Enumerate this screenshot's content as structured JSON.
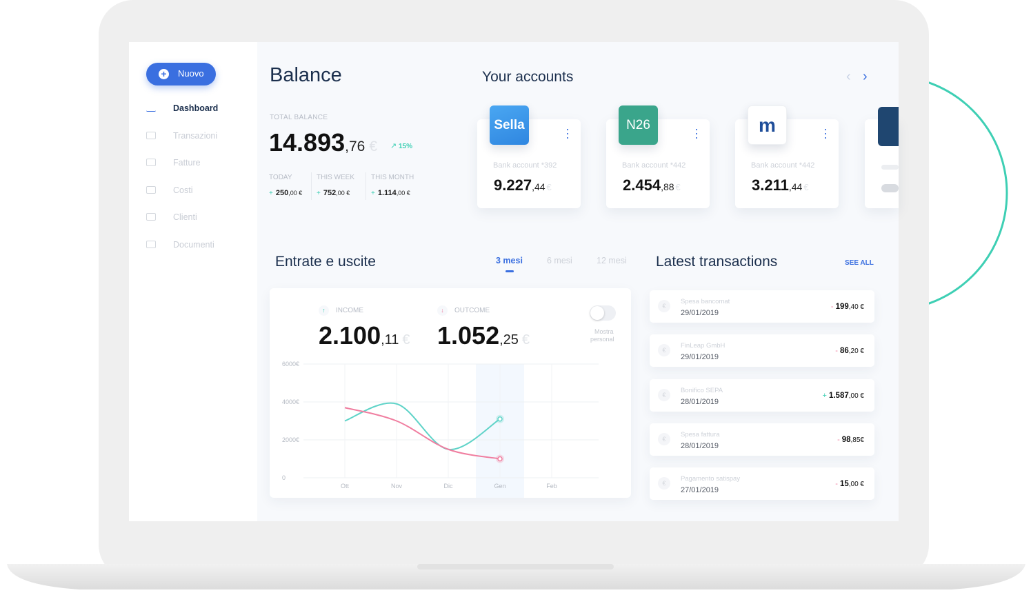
{
  "sidebar": {
    "new_button": "Nuovo",
    "menu": [
      "Dashboard",
      "Transazioni",
      "Fatture",
      "Costi",
      "Clienti",
      "Documenti"
    ]
  },
  "balance": {
    "title": "Balance",
    "total_label": "TOTAL BALANCE",
    "total": {
      "integer": "14.893",
      "decimal": ",76",
      "currency": "€"
    },
    "change": "15%",
    "periods": [
      {
        "label": "TODAY",
        "sign": "+",
        "amount": "250",
        "decimal": ",00 €"
      },
      {
        "label": "THIS WEEK",
        "sign": "+",
        "amount": "752",
        "decimal": ",00 €"
      },
      {
        "label": "THIS MONTH",
        "sign": "+",
        "amount": "1.114",
        "decimal": ",00 €"
      }
    ]
  },
  "accounts": {
    "title": "Your accounts",
    "cards": [
      {
        "logo": "Sella",
        "name": "Bank account *392",
        "integer": "9.227",
        "decimal": ",44",
        "currency": "€"
      },
      {
        "logo": "N26",
        "name": "Bank account *442",
        "integer": "2.454",
        "decimal": ",88",
        "currency": "€"
      },
      {
        "logo": "m",
        "name": "Bank account *442",
        "integer": "3.211",
        "decimal": ",44",
        "currency": "€"
      }
    ]
  },
  "flows": {
    "title": "Entrate e uscite",
    "tabs": [
      "3 mesi",
      "6 mesi",
      "12 mesi"
    ],
    "income": {
      "label": "INCOME",
      "integer": "2.100",
      "decimal": ",11",
      "currency": "€"
    },
    "outcome": {
      "label": "OUTCOME",
      "integer": "1.052",
      "decimal": ",25",
      "currency": "€"
    },
    "toggle_label": [
      "Mostra",
      "personal"
    ]
  },
  "chart": {
    "type": "line",
    "categories": [
      "Ott",
      "Nov",
      "Dic",
      "Gen",
      "Feb"
    ],
    "series": [
      {
        "color": "#5fd3c8",
        "values": [
          3000,
          3900,
          1500,
          3100,
          null
        ]
      },
      {
        "color": "#f07ea0",
        "values": [
          3700,
          3000,
          1500,
          1000,
          null
        ]
      }
    ],
    "ylim": [
      0,
      6000
    ],
    "yticks": [
      0,
      {
        "value": 2000,
        "label": "2000€"
      },
      {
        "value": 4000,
        "label": "4000€"
      },
      {
        "value": 6000,
        "label": "6000€"
      }
    ],
    "grid": true
  },
  "transactions": {
    "title": "Latest transactions",
    "see_all": "SEE ALL",
    "items": [
      {
        "name": "Spesa bancomat",
        "date": "29/01/2019",
        "sign": "-",
        "amount": "199",
        "decimal": ",40 €"
      },
      {
        "name": "FinLeap GmbH",
        "date": "29/01/2019",
        "sign": "-",
        "amount": "86",
        "decimal": ",20 €"
      },
      {
        "name": "Bonifico SEPA",
        "date": "28/01/2019",
        "sign": "+",
        "amount": "1.587",
        "decimal": ",00 €"
      },
      {
        "name": "Spesa fattura",
        "date": "28/01/2019",
        "sign": "-",
        "amount": "98",
        "decimal": ",85€"
      },
      {
        "name": "Pagamento satispay",
        "date": "27/01/2019",
        "sign": "-",
        "amount": "15",
        "decimal": ",00 €"
      }
    ]
  }
}
